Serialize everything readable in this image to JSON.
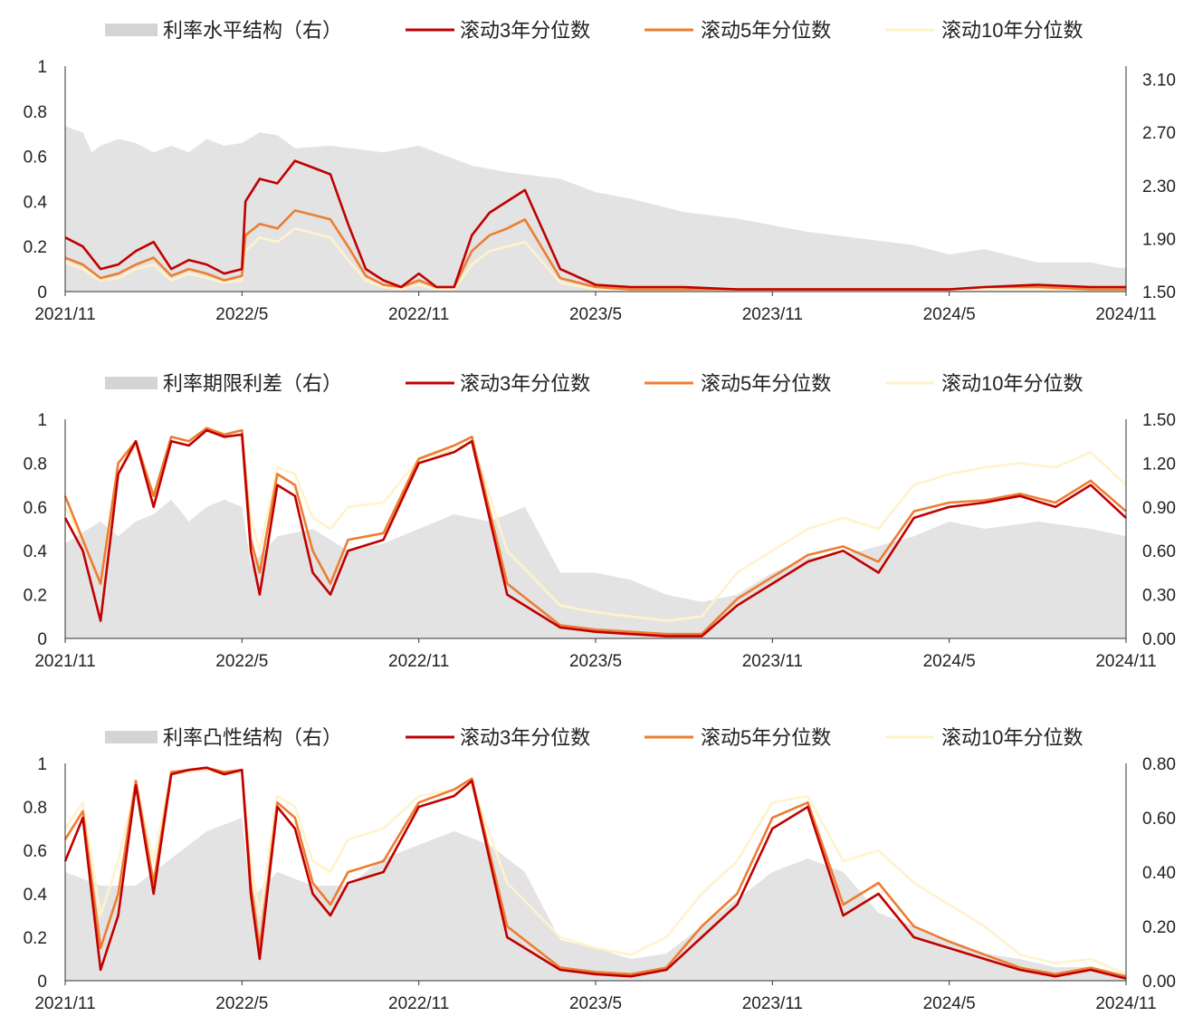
{
  "colors": {
    "area": "#e3e3e3",
    "area_legend": "#d4d4d4",
    "rolling3": "#c00000",
    "rolling5": "#ed7d31",
    "rolling10": "#fff2cc",
    "axis": "#333333",
    "text": "#222222"
  },
  "chart_data": [
    {
      "type": "line",
      "legend": [
        "利率水平结构（右）",
        "滚动3年分位数",
        "滚动5年分位数",
        "滚动10年分位数"
      ],
      "x_ticks": [
        "2021/11",
        "2022/5",
        "2022/11",
        "2023/5",
        "2023/11",
        "2024/5",
        "2024/11"
      ],
      "y_left": {
        "min": 0,
        "max": 1,
        "ticks": [
          "0",
          "0.2",
          "0.4",
          "0.6",
          "0.8",
          "1"
        ]
      },
      "y_right": {
        "min": 1.5,
        "max": 3.2,
        "ticks": [
          "1.50",
          "1.90",
          "2.30",
          "2.70",
          "3.10"
        ]
      },
      "area_series": {
        "name": "利率水平结构（右）",
        "x": [
          0,
          0.05,
          0.1,
          0.15,
          0.2,
          0.3,
          0.4,
          0.5,
          0.6,
          0.7,
          0.8,
          0.9,
          1,
          1.1,
          1.2,
          1.3,
          1.5,
          1.8,
          2,
          2.1,
          2.3,
          2.5,
          2.8,
          3,
          3.2,
          3.5,
          3.8,
          4,
          4.2,
          4.5,
          4.8,
          5,
          5.2,
          5.5,
          5.8,
          5.95,
          6.0
        ],
        "y": [
          2.75,
          2.72,
          2.7,
          2.55,
          2.6,
          2.65,
          2.62,
          2.55,
          2.6,
          2.55,
          2.65,
          2.6,
          2.62,
          2.7,
          2.68,
          2.58,
          2.6,
          2.55,
          2.6,
          2.55,
          2.45,
          2.4,
          2.35,
          2.25,
          2.2,
          2.1,
          2.05,
          2.0,
          1.95,
          1.9,
          1.85,
          1.78,
          1.82,
          1.72,
          1.72,
          1.68,
          1.68
        ]
      },
      "series": [
        {
          "name": "滚动3年分位数",
          "x": [
            0,
            0.1,
            0.2,
            0.3,
            0.4,
            0.5,
            0.6,
            0.7,
            0.8,
            0.9,
            1.0,
            1.02,
            1.1,
            1.2,
            1.3,
            1.4,
            1.5,
            1.6,
            1.7,
            1.8,
            1.9,
            2.0,
            2.1,
            2.2,
            2.3,
            2.4,
            2.5,
            2.6,
            2.8,
            3.0,
            3.2,
            3.5,
            3.8,
            4.0,
            4.2,
            4.5,
            4.8,
            5.0,
            5.2,
            5.5,
            5.8,
            6.0
          ],
          "y": [
            0.24,
            0.2,
            0.1,
            0.12,
            0.18,
            0.22,
            0.1,
            0.14,
            0.12,
            0.08,
            0.1,
            0.4,
            0.5,
            0.48,
            0.58,
            0.55,
            0.52,
            0.3,
            0.1,
            0.05,
            0.02,
            0.08,
            0.02,
            0.02,
            0.25,
            0.35,
            0.4,
            0.45,
            0.1,
            0.03,
            0.02,
            0.02,
            0.01,
            0.01,
            0.01,
            0.01,
            0.01,
            0.01,
            0.02,
            0.03,
            0.02,
            0.02
          ]
        },
        {
          "name": "滚动5年分位数",
          "x": [
            0,
            0.1,
            0.2,
            0.3,
            0.4,
            0.5,
            0.6,
            0.7,
            0.8,
            0.9,
            1.0,
            1.02,
            1.1,
            1.2,
            1.3,
            1.4,
            1.5,
            1.6,
            1.7,
            1.8,
            1.9,
            2.0,
            2.1,
            2.2,
            2.3,
            2.4,
            2.5,
            2.6,
            2.8,
            3.0,
            3.2,
            3.5,
            3.8,
            4.0,
            4.2,
            4.5,
            4.8,
            5.0,
            5.2,
            5.5,
            5.8,
            6.0
          ],
          "y": [
            0.15,
            0.12,
            0.06,
            0.08,
            0.12,
            0.15,
            0.07,
            0.1,
            0.08,
            0.05,
            0.07,
            0.25,
            0.3,
            0.28,
            0.36,
            0.34,
            0.32,
            0.2,
            0.07,
            0.03,
            0.02,
            0.05,
            0.02,
            0.02,
            0.18,
            0.25,
            0.28,
            0.32,
            0.06,
            0.02,
            0.01,
            0.01,
            0.01,
            0.01,
            0.01,
            0.01,
            0.01,
            0.01,
            0.02,
            0.02,
            0.01,
            0.01
          ]
        },
        {
          "name": "滚动10年分位数",
          "x": [
            0,
            0.1,
            0.2,
            0.3,
            0.4,
            0.5,
            0.6,
            0.7,
            0.8,
            0.9,
            1.0,
            1.02,
            1.1,
            1.2,
            1.3,
            1.4,
            1.5,
            1.6,
            1.7,
            1.8,
            1.9,
            2.0,
            2.1,
            2.2,
            2.3,
            2.4,
            2.5,
            2.6,
            2.8,
            3.0,
            3.2,
            3.5,
            3.8,
            4.0,
            4.2,
            4.5,
            4.8,
            5.0,
            5.2,
            5.5,
            5.8,
            6.0
          ],
          "y": [
            0.13,
            0.1,
            0.05,
            0.06,
            0.1,
            0.12,
            0.05,
            0.08,
            0.06,
            0.04,
            0.05,
            0.18,
            0.24,
            0.22,
            0.28,
            0.26,
            0.24,
            0.14,
            0.05,
            0.02,
            0.01,
            0.03,
            0.01,
            0.01,
            0.12,
            0.18,
            0.2,
            0.22,
            0.04,
            0.01,
            0.01,
            0.01,
            0.01,
            0.01,
            0.01,
            0.01,
            0.01,
            0.01,
            0.01,
            0.01,
            0.01,
            0.01
          ]
        }
      ]
    },
    {
      "type": "line",
      "legend": [
        "利率期限利差（右）",
        "滚动3年分位数",
        "滚动5年分位数",
        "滚动10年分位数"
      ],
      "x_ticks": [
        "2021/11",
        "2022/5",
        "2022/11",
        "2023/5",
        "2023/11",
        "2024/5",
        "2024/11"
      ],
      "y_left": {
        "min": 0,
        "max": 1,
        "ticks": [
          "0",
          "0.2",
          "0.4",
          "0.6",
          "0.8",
          "1"
        ]
      },
      "y_right": {
        "min": 0,
        "max": 1.5,
        "ticks": [
          "0.00",
          "0.30",
          "0.60",
          "0.90",
          "1.20",
          "1.50"
        ]
      },
      "area_series": {
        "name": "利率期限利差（右）",
        "x": [
          0,
          0.2,
          0.3,
          0.4,
          0.5,
          0.6,
          0.7,
          0.8,
          0.9,
          1.0,
          1.05,
          1.2,
          1.4,
          1.6,
          1.8,
          2.0,
          2.2,
          2.4,
          2.6,
          2.8,
          3.0,
          3.2,
          3.4,
          3.6,
          3.8,
          4.0,
          4.2,
          4.5,
          4.8,
          5.0,
          5.2,
          5.5,
          5.8,
          6.0
        ],
        "y": [
          0.65,
          0.8,
          0.7,
          0.8,
          0.85,
          0.95,
          0.8,
          0.9,
          0.95,
          0.9,
          0.5,
          0.7,
          0.75,
          0.6,
          0.65,
          0.75,
          0.85,
          0.8,
          0.9,
          0.45,
          0.45,
          0.4,
          0.3,
          0.25,
          0.3,
          0.45,
          0.55,
          0.6,
          0.7,
          0.8,
          0.75,
          0.8,
          0.75,
          0.7
        ]
      },
      "series": [
        {
          "name": "滚动3年分位数",
          "x": [
            0,
            0.1,
            0.2,
            0.3,
            0.4,
            0.5,
            0.6,
            0.7,
            0.8,
            0.9,
            1.0,
            1.05,
            1.1,
            1.2,
            1.3,
            1.4,
            1.5,
            1.6,
            1.8,
            2.0,
            2.2,
            2.3,
            2.5,
            2.8,
            3.0,
            3.2,
            3.4,
            3.6,
            3.8,
            4.0,
            4.2,
            4.4,
            4.6,
            4.8,
            5.0,
            5.2,
            5.4,
            5.6,
            5.8,
            6.0
          ],
          "y": [
            0.55,
            0.4,
            0.08,
            0.75,
            0.9,
            0.6,
            0.9,
            0.88,
            0.95,
            0.92,
            0.93,
            0.4,
            0.2,
            0.7,
            0.65,
            0.3,
            0.2,
            0.4,
            0.45,
            0.8,
            0.85,
            0.9,
            0.2,
            0.05,
            0.03,
            0.02,
            0.01,
            0.01,
            0.15,
            0.25,
            0.35,
            0.4,
            0.3,
            0.55,
            0.6,
            0.62,
            0.65,
            0.6,
            0.7,
            0.55
          ]
        },
        {
          "name": "滚动5年分位数",
          "x": [
            0,
            0.1,
            0.2,
            0.3,
            0.4,
            0.5,
            0.6,
            0.7,
            0.8,
            0.9,
            1.0,
            1.05,
            1.1,
            1.2,
            1.3,
            1.4,
            1.5,
            1.6,
            1.8,
            2.0,
            2.2,
            2.3,
            2.5,
            2.8,
            3.0,
            3.2,
            3.4,
            3.6,
            3.8,
            4.0,
            4.2,
            4.4,
            4.6,
            4.8,
            5.0,
            5.2,
            5.4,
            5.6,
            5.8,
            6.0
          ],
          "y": [
            0.65,
            0.45,
            0.25,
            0.8,
            0.9,
            0.65,
            0.92,
            0.9,
            0.96,
            0.93,
            0.95,
            0.45,
            0.3,
            0.75,
            0.7,
            0.4,
            0.25,
            0.45,
            0.48,
            0.82,
            0.88,
            0.92,
            0.25,
            0.06,
            0.04,
            0.03,
            0.02,
            0.02,
            0.18,
            0.28,
            0.38,
            0.42,
            0.35,
            0.58,
            0.62,
            0.63,
            0.66,
            0.62,
            0.72,
            0.58
          ]
        },
        {
          "name": "滚动10年分位数",
          "x": [
            0,
            0.1,
            0.2,
            0.3,
            0.4,
            0.5,
            0.6,
            0.7,
            0.8,
            0.9,
            1.0,
            1.05,
            1.1,
            1.2,
            1.3,
            1.4,
            1.5,
            1.6,
            1.8,
            2.0,
            2.2,
            2.3,
            2.5,
            2.8,
            3.0,
            3.2,
            3.4,
            3.6,
            3.8,
            4.0,
            4.2,
            4.4,
            4.6,
            4.8,
            5.0,
            5.2,
            5.4,
            5.6,
            5.8,
            6.0
          ],
          "y": [
            0.6,
            0.45,
            0.25,
            0.75,
            0.88,
            0.62,
            0.9,
            0.88,
            0.95,
            0.92,
            0.93,
            0.55,
            0.4,
            0.78,
            0.75,
            0.55,
            0.5,
            0.6,
            0.62,
            0.82,
            0.86,
            0.9,
            0.4,
            0.15,
            0.12,
            0.1,
            0.08,
            0.1,
            0.3,
            0.4,
            0.5,
            0.55,
            0.5,
            0.7,
            0.75,
            0.78,
            0.8,
            0.78,
            0.85,
            0.7
          ]
        }
      ]
    },
    {
      "type": "line",
      "legend": [
        "利率凸性结构（右）",
        "滚动3年分位数",
        "滚动5年分位数",
        "滚动10年分位数"
      ],
      "x_ticks": [
        "2021/11",
        "2022/5",
        "2022/11",
        "2023/5",
        "2023/11",
        "2024/5",
        "2024/11"
      ],
      "y_left": {
        "min": 0,
        "max": 1,
        "ticks": [
          "0",
          "0.2",
          "0.4",
          "0.6",
          "0.8",
          "1"
        ]
      },
      "y_right": {
        "min": 0,
        "max": 0.8,
        "ticks": [
          "0.00",
          "0.20",
          "0.40",
          "0.60",
          "0.80"
        ]
      },
      "area_series": {
        "name": "利率凸性结构（右）",
        "x": [
          0,
          0.2,
          0.4,
          0.6,
          0.8,
          1.0,
          1.05,
          1.2,
          1.4,
          1.6,
          1.8,
          2.0,
          2.2,
          2.4,
          2.6,
          2.8,
          3.0,
          3.2,
          3.4,
          3.6,
          3.8,
          4.0,
          4.2,
          4.4,
          4.6,
          4.8,
          5.0,
          5.2,
          5.4,
          5.6,
          5.8,
          6.0
        ],
        "y": [
          0.4,
          0.35,
          0.35,
          0.45,
          0.55,
          0.6,
          0.3,
          0.4,
          0.35,
          0.35,
          0.45,
          0.5,
          0.55,
          0.5,
          0.4,
          0.15,
          0.12,
          0.08,
          0.1,
          0.2,
          0.3,
          0.4,
          0.45,
          0.4,
          0.25,
          0.2,
          0.15,
          0.1,
          0.08,
          0.05,
          0.05,
          0.02
        ]
      },
      "series": [
        {
          "name": "滚动3年分位数",
          "x": [
            0,
            0.1,
            0.2,
            0.3,
            0.4,
            0.5,
            0.6,
            0.7,
            0.8,
            0.9,
            1.0,
            1.05,
            1.1,
            1.2,
            1.3,
            1.4,
            1.5,
            1.6,
            1.8,
            2.0,
            2.2,
            2.3,
            2.5,
            2.8,
            3.0,
            3.2,
            3.4,
            3.6,
            3.8,
            4.0,
            4.2,
            4.4,
            4.6,
            4.8,
            5.0,
            5.2,
            5.4,
            5.6,
            5.8,
            6.0
          ],
          "y": [
            0.55,
            0.75,
            0.05,
            0.3,
            0.9,
            0.4,
            0.95,
            0.97,
            0.98,
            0.95,
            0.97,
            0.4,
            0.1,
            0.8,
            0.7,
            0.4,
            0.3,
            0.45,
            0.5,
            0.8,
            0.85,
            0.92,
            0.2,
            0.05,
            0.03,
            0.02,
            0.05,
            0.2,
            0.35,
            0.7,
            0.8,
            0.3,
            0.4,
            0.2,
            0.15,
            0.1,
            0.05,
            0.02,
            0.05,
            0.01
          ]
        },
        {
          "name": "滚动5年分位数",
          "x": [
            0,
            0.1,
            0.2,
            0.3,
            0.4,
            0.5,
            0.6,
            0.7,
            0.8,
            0.9,
            1.0,
            1.05,
            1.1,
            1.2,
            1.3,
            1.4,
            1.5,
            1.6,
            1.8,
            2.0,
            2.2,
            2.3,
            2.5,
            2.8,
            3.0,
            3.2,
            3.4,
            3.6,
            3.8,
            4.0,
            4.2,
            4.4,
            4.6,
            4.8,
            5.0,
            5.2,
            5.4,
            5.6,
            5.8,
            6.0
          ],
          "y": [
            0.65,
            0.78,
            0.15,
            0.4,
            0.92,
            0.45,
            0.96,
            0.97,
            0.98,
            0.96,
            0.97,
            0.45,
            0.15,
            0.82,
            0.75,
            0.45,
            0.35,
            0.5,
            0.55,
            0.82,
            0.88,
            0.93,
            0.25,
            0.06,
            0.04,
            0.03,
            0.06,
            0.25,
            0.4,
            0.75,
            0.82,
            0.35,
            0.45,
            0.25,
            0.18,
            0.12,
            0.06,
            0.03,
            0.06,
            0.02
          ]
        },
        {
          "name": "滚动10年分位数",
          "x": [
            0,
            0.1,
            0.2,
            0.3,
            0.4,
            0.5,
            0.6,
            0.7,
            0.8,
            0.9,
            1.0,
            1.05,
            1.1,
            1.2,
            1.3,
            1.4,
            1.5,
            1.6,
            1.8,
            2.0,
            2.2,
            2.3,
            2.5,
            2.8,
            3.0,
            3.2,
            3.4,
            3.6,
            3.8,
            4.0,
            4.2,
            4.4,
            4.6,
            4.8,
            5.0,
            5.2,
            5.4,
            5.6,
            5.8,
            6.0
          ],
          "y": [
            0.7,
            0.82,
            0.3,
            0.55,
            0.9,
            0.55,
            0.95,
            0.96,
            0.97,
            0.95,
            0.96,
            0.55,
            0.3,
            0.85,
            0.8,
            0.55,
            0.5,
            0.65,
            0.7,
            0.85,
            0.88,
            0.9,
            0.45,
            0.2,
            0.15,
            0.12,
            0.2,
            0.4,
            0.55,
            0.82,
            0.85,
            0.55,
            0.6,
            0.45,
            0.35,
            0.25,
            0.12,
            0.08,
            0.1,
            0.03
          ]
        }
      ]
    }
  ]
}
